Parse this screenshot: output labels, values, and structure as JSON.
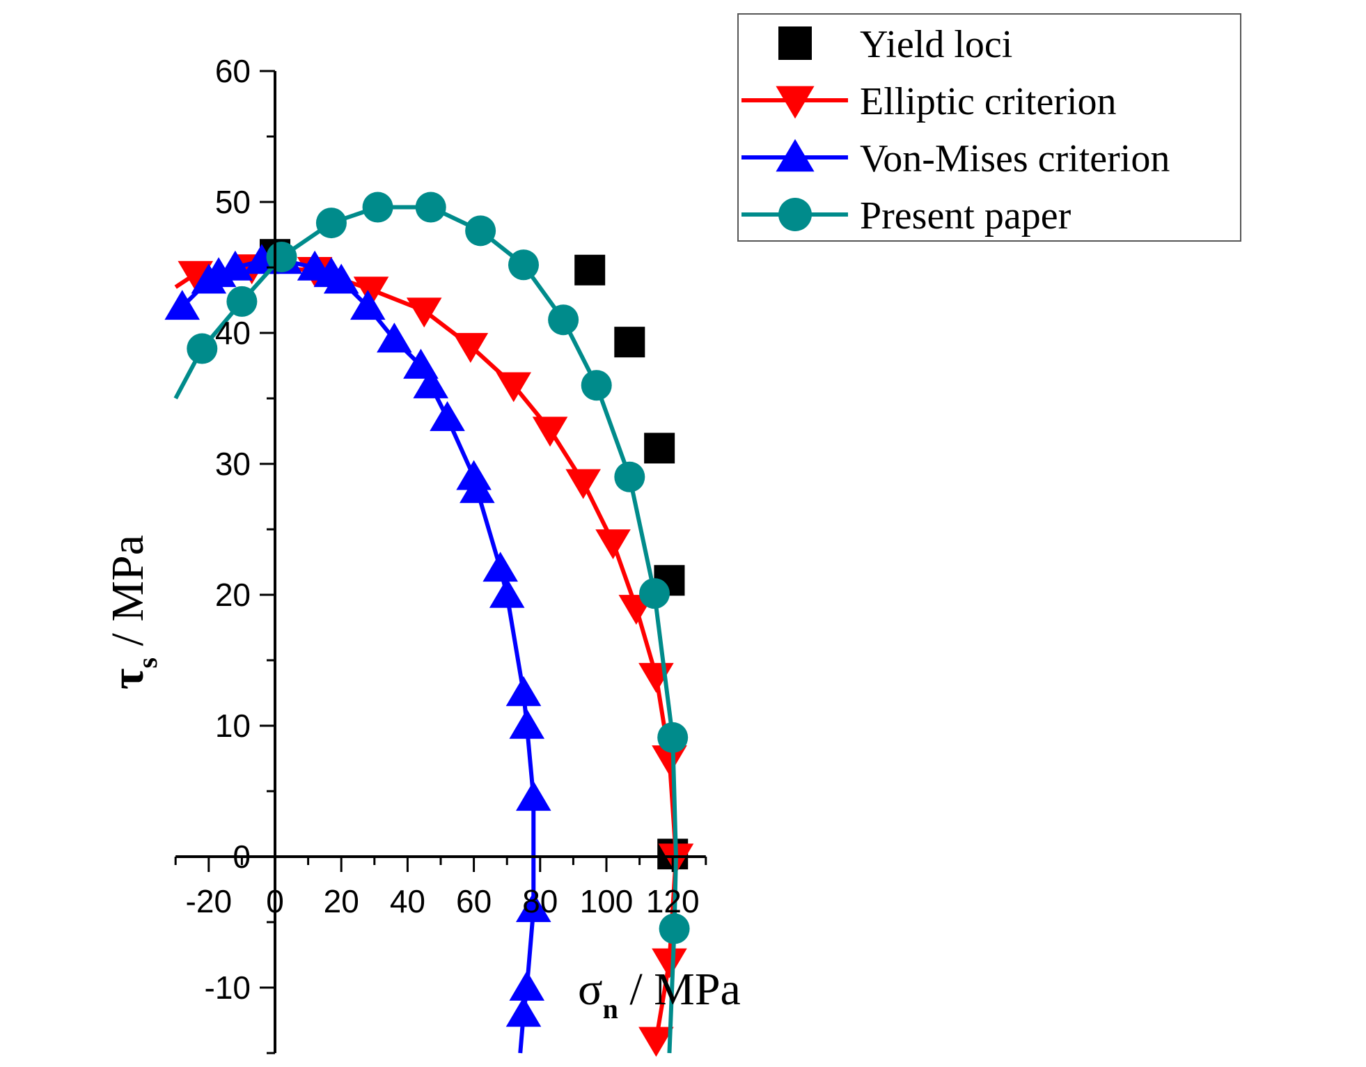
{
  "chart_data": {
    "type": "line",
    "title": "",
    "xlabel": {
      "symbol": "σ",
      "subscript": "n",
      "unit": " / MPa"
    },
    "ylabel": {
      "symbol": "τ",
      "subscript": "s",
      "unit": " / MPa"
    },
    "xlim": [
      -30,
      130
    ],
    "ylim": [
      -15,
      60
    ],
    "x_ticks": [
      -20,
      0,
      20,
      40,
      60,
      80,
      100,
      120
    ],
    "y_ticks": [
      -10,
      0,
      10,
      20,
      30,
      40,
      50,
      60
    ],
    "legend_position": "top-right",
    "grid": false,
    "series": [
      {
        "name": "Yield loci",
        "style": "scatter",
        "marker": "square",
        "color": "#000000",
        "x": [
          0,
          95,
          107,
          116,
          119,
          120
        ],
        "y": [
          46,
          44.8,
          39.3,
          31.2,
          21.1,
          0.2
        ]
      },
      {
        "name": "Elliptic criterion",
        "style": "line+markers",
        "marker": "triangle-down",
        "color": "#ff0000",
        "x": [
          -30,
          -24,
          -7,
          12,
          29,
          45,
          59,
          72,
          83,
          93,
          102,
          109,
          115,
          119,
          121,
          119,
          115
        ],
        "y": [
          43.5,
          44.5,
          45.0,
          44.8,
          43.3,
          41.7,
          39.0,
          36.0,
          32.6,
          28.6,
          24.0,
          19.0,
          13.8,
          7.5,
          0,
          -8,
          -14
        ],
        "marker_x": [
          -24,
          -7,
          12,
          29,
          45,
          59,
          72,
          83,
          93,
          102,
          109,
          115,
          119,
          121,
          119,
          115
        ],
        "marker_y": [
          44.5,
          45.0,
          44.8,
          43.3,
          41.7,
          39.0,
          36.0,
          32.6,
          28.6,
          24.0,
          19.0,
          13.8,
          7.5,
          0,
          -8,
          -14
        ]
      },
      {
        "name": "Von-Mises criterion",
        "style": "line+markers",
        "marker": "triangle-up",
        "color": "#0000ff",
        "x": [
          -28,
          -20,
          -17,
          -12,
          -4,
          3,
          12,
          17,
          20,
          28,
          36,
          44,
          47,
          52,
          60,
          61,
          68,
          70,
          75,
          76,
          78,
          78,
          76,
          75,
          74
        ],
        "y": [
          42,
          44,
          44.5,
          45,
          45.5,
          45.5,
          45,
          44.5,
          44,
          42,
          39.5,
          37.5,
          36,
          33.5,
          29,
          28,
          22,
          20,
          12.5,
          10,
          4.5,
          -4,
          -10,
          -12,
          -15
        ],
        "marker_x": [
          -28,
          -20,
          -17,
          -12,
          -4,
          3,
          12,
          17,
          20,
          28,
          36,
          44,
          47,
          52,
          60,
          61,
          68,
          70,
          75,
          76,
          78,
          78,
          76,
          75
        ],
        "marker_y": [
          42,
          44,
          44.5,
          45,
          45.5,
          45.5,
          45,
          44.5,
          44,
          42,
          39.5,
          37.5,
          36,
          33.5,
          29,
          28,
          22,
          20,
          12.5,
          10,
          4.5,
          -4,
          -10,
          -12
        ]
      },
      {
        "name": "Present paper",
        "style": "line+markers",
        "marker": "circle",
        "color": "#008b8b",
        "x": [
          -30,
          -22,
          -10,
          2,
          17,
          31,
          47,
          62,
          75,
          87,
          97,
          107,
          114.5,
          120,
          121,
          120.5,
          119
        ],
        "y": [
          35,
          38.8,
          42.4,
          45.8,
          48.4,
          49.6,
          49.6,
          47.8,
          45.2,
          41,
          36,
          29,
          20.1,
          9.1,
          0,
          -5.5,
          -15
        ],
        "marker_x": [
          -22,
          -10,
          2,
          17,
          31,
          47,
          62,
          75,
          87,
          97,
          107,
          114.5,
          120,
          120.5
        ],
        "marker_y": [
          38.8,
          42.4,
          45.8,
          48.4,
          49.6,
          49.6,
          47.8,
          45.2,
          41,
          36,
          29,
          20.1,
          9.1,
          -5.5
        ]
      }
    ]
  }
}
